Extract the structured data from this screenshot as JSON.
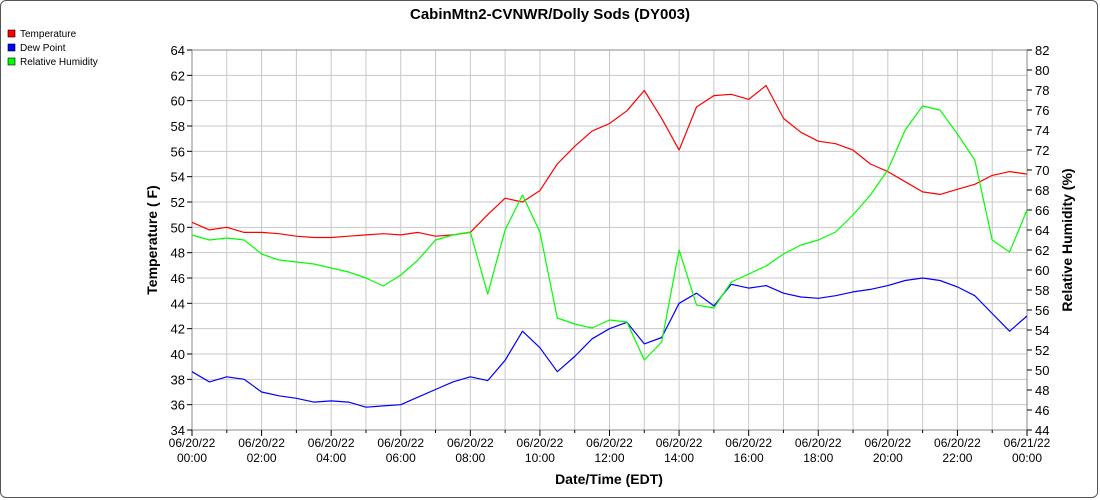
{
  "chart_data": {
    "type": "line",
    "title": "CabinMtn2-CVNWR/Dolly Sods (DY003)",
    "xlabel": "Date/Time (EDT)",
    "ylabel_left": "Temperature ( F)",
    "ylabel_right": "Relative Humidity (%)",
    "ylim_left": [
      34,
      64
    ],
    "ylim_right": [
      44,
      82
    ],
    "yticks_left": [
      "34",
      "36",
      "38",
      "40",
      "42",
      "44",
      "46",
      "48",
      "50",
      "52",
      "54",
      "56",
      "58",
      "60",
      "62",
      "64"
    ],
    "yticks_right": [
      "44",
      "46",
      "48",
      "50",
      "52",
      "54",
      "56",
      "58",
      "60",
      "62",
      "64",
      "66",
      "68",
      "70",
      "72",
      "74",
      "76",
      "78",
      "80",
      "82"
    ],
    "xlim_hours": [
      0,
      24
    ],
    "xticks": [
      {
        "date": "06/20/22",
        "time": "00:00"
      },
      {
        "date": "06/20/22",
        "time": "02:00"
      },
      {
        "date": "06/20/22",
        "time": "04:00"
      },
      {
        "date": "06/20/22",
        "time": "06:00"
      },
      {
        "date": "06/20/22",
        "time": "08:00"
      },
      {
        "date": "06/20/22",
        "time": "10:00"
      },
      {
        "date": "06/20/22",
        "time": "12:00"
      },
      {
        "date": "06/20/22",
        "time": "14:00"
      },
      {
        "date": "06/20/22",
        "time": "16:00"
      },
      {
        "date": "06/20/22",
        "time": "18:00"
      },
      {
        "date": "06/20/22",
        "time": "20:00"
      },
      {
        "date": "06/20/22",
        "time": "22:00"
      },
      {
        "date": "06/21/22",
        "time": "00:00"
      }
    ],
    "grid": true,
    "legend_position": "top-left",
    "series": [
      {
        "name": "Temperature",
        "axis": "left",
        "color": "#ff0000",
        "x": [
          0,
          0.5,
          1,
          1.5,
          2,
          2.5,
          3,
          3.5,
          4,
          4.5,
          5,
          5.5,
          6,
          6.5,
          7,
          7.5,
          8,
          8.5,
          9,
          9.5,
          10,
          10.5,
          11,
          11.5,
          12,
          12.5,
          13,
          13.5,
          14,
          14.5,
          15,
          15.5,
          16,
          16.5,
          17,
          17.5,
          18,
          18.5,
          19,
          19.5,
          20,
          20.5,
          21,
          21.5,
          22,
          22.5,
          23,
          23.5,
          24
        ],
        "values": [
          50.4,
          49.8,
          50.0,
          49.6,
          49.6,
          49.5,
          49.3,
          49.2,
          49.2,
          49.3,
          49.4,
          49.5,
          49.4,
          49.6,
          49.3,
          49.4,
          49.6,
          51.0,
          52.3,
          52.0,
          52.9,
          55.0,
          56.4,
          57.6,
          58.2,
          59.2,
          60.8,
          58.6,
          56.1,
          59.5,
          60.4,
          60.5,
          60.1,
          61.2,
          58.6,
          57.5,
          56.8,
          56.6,
          56.1,
          55.0,
          54.4,
          53.6,
          52.8,
          52.6,
          53.0,
          53.4,
          54.1,
          54.4,
          54.2
        ]
      },
      {
        "name": "Dew Point",
        "axis": "left",
        "color": "#0000ff",
        "x": [
          0,
          0.5,
          1,
          1.5,
          2,
          2.5,
          3,
          3.5,
          4,
          4.5,
          5,
          5.5,
          6,
          6.5,
          7,
          7.5,
          8,
          8.5,
          9,
          9.5,
          10,
          10.5,
          11,
          11.5,
          12,
          12.5,
          13,
          13.5,
          14,
          14.5,
          15,
          15.5,
          16,
          16.5,
          17,
          17.5,
          18,
          18.5,
          19,
          19.5,
          20,
          20.5,
          21,
          21.5,
          22,
          22.5,
          23,
          23.5,
          24
        ],
        "values": [
          38.6,
          37.8,
          38.2,
          38.0,
          37.0,
          36.7,
          36.5,
          36.2,
          36.3,
          36.2,
          35.8,
          35.9,
          36.0,
          36.6,
          37.2,
          37.8,
          38.2,
          37.9,
          39.5,
          41.8,
          40.5,
          38.6,
          39.8,
          41.2,
          42.0,
          42.5,
          40.8,
          41.3,
          44.0,
          44.8,
          43.8,
          45.5,
          45.2,
          45.4,
          44.8,
          44.5,
          44.4,
          44.6,
          44.9,
          45.1,
          45.4,
          45.8,
          46.0,
          45.8,
          45.3,
          44.6,
          43.2,
          41.8,
          43.0
        ]
      },
      {
        "name": "Relative Humidity",
        "axis": "right",
        "color": "#00ff00",
        "x": [
          0,
          0.5,
          1,
          1.5,
          2,
          2.5,
          3,
          3.5,
          4,
          4.5,
          5,
          5.5,
          6,
          6.5,
          7,
          7.5,
          8,
          8.5,
          9,
          9.5,
          10,
          10.5,
          11,
          11.5,
          12,
          12.5,
          13,
          13.5,
          14,
          14.5,
          15,
          15.5,
          16,
          16.5,
          17,
          17.5,
          18,
          18.5,
          19,
          19.5,
          20,
          20.5,
          21,
          21.5,
          22,
          22.5,
          23,
          23.5,
          24
        ],
        "values": [
          63.5,
          63.0,
          63.2,
          63.0,
          61.6,
          61.0,
          60.8,
          60.6,
          60.2,
          59.8,
          59.2,
          58.4,
          59.5,
          61.0,
          63.0,
          63.5,
          63.8,
          57.6,
          64.0,
          67.5,
          63.8,
          55.2,
          54.6,
          54.2,
          55.0,
          54.8,
          51.0,
          52.8,
          62.0,
          56.5,
          56.2,
          58.8,
          59.6,
          60.4,
          61.6,
          62.5,
          63.0,
          63.8,
          65.5,
          67.5,
          70.0,
          74.0,
          76.4,
          76.0,
          73.6,
          71.0,
          63.0,
          61.8,
          66.0
        ]
      }
    ]
  }
}
